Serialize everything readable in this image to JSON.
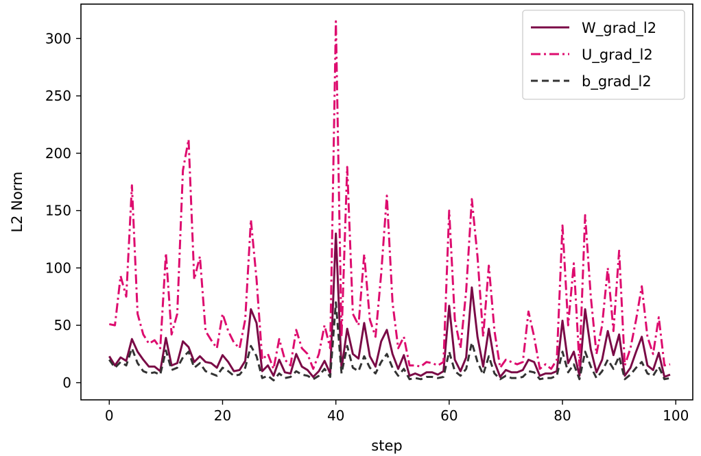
{
  "chart_data": {
    "type": "line",
    "title": "",
    "xlabel": "step",
    "ylabel": "L2 Norm",
    "xlim": [
      -5,
      103
    ],
    "ylim": [
      -15,
      330
    ],
    "xticks": [
      0,
      20,
      40,
      60,
      80,
      100
    ],
    "yticks": [
      0,
      50,
      100,
      150,
      200,
      250,
      300
    ],
    "grid": false,
    "legend": "top-right",
    "series": [
      {
        "name": "W_grad_l2",
        "color": "#7a0a46",
        "dash": "solid",
        "values": [
          23,
          15,
          22,
          19,
          38,
          27,
          20,
          14,
          14,
          10,
          39,
          15,
          17,
          36,
          31,
          18,
          23,
          18,
          17,
          13,
          24,
          18,
          10,
          11,
          19,
          64,
          52,
          10,
          15,
          6,
          20,
          9,
          8,
          25,
          14,
          11,
          5,
          10,
          19,
          8,
          130,
          12,
          47,
          25,
          21,
          52,
          23,
          14,
          36,
          46,
          25,
          12,
          24,
          6,
          8,
          6,
          9,
          9,
          7,
          10,
          67,
          20,
          10,
          22,
          83,
          40,
          14,
          47,
          18,
          5,
          11,
          9,
          9,
          11,
          20,
          18,
          6,
          8,
          8,
          10,
          54,
          17,
          27,
          6,
          64,
          29,
          9,
          20,
          45,
          24,
          42,
          6,
          13,
          27,
          40,
          15,
          11,
          26,
          5,
          7
        ]
      },
      {
        "name": "U_grad_l2",
        "color": "#dd0c6e",
        "dash": "dashdot",
        "values": [
          51,
          50,
          93,
          75,
          172,
          60,
          42,
          34,
          37,
          30,
          113,
          42,
          60,
          185,
          212,
          90,
          110,
          45,
          37,
          30,
          60,
          45,
          35,
          30,
          55,
          142,
          90,
          20,
          25,
          12,
          38,
          20,
          15,
          46,
          30,
          25,
          12,
          25,
          50,
          30,
          315,
          40,
          188,
          60,
          50,
          112,
          55,
          40,
          95,
          163,
          70,
          30,
          40,
          15,
          15,
          14,
          18,
          17,
          15,
          18,
          150,
          55,
          30,
          80,
          160,
          110,
          40,
          102,
          45,
          13,
          20,
          18,
          16,
          18,
          62,
          40,
          12,
          16,
          12,
          20,
          137,
          50,
          104,
          15,
          146,
          75,
          25,
          50,
          100,
          45,
          115,
          15,
          30,
          55,
          84,
          40,
          25,
          57,
          15,
          16
        ]
      },
      {
        "name": "b_grad_l2",
        "color": "#333333",
        "dash": "dashed",
        "values": [
          20,
          13,
          18,
          15,
          30,
          17,
          10,
          8,
          9,
          7,
          28,
          11,
          13,
          22,
          27,
          13,
          17,
          10,
          8,
          6,
          13,
          10,
          6,
          7,
          13,
          32,
          23,
          4,
          6,
          2,
          8,
          4,
          5,
          10,
          7,
          6,
          3,
          6,
          12,
          5,
          70,
          8,
          32,
          13,
          10,
          23,
          13,
          8,
          18,
          25,
          13,
          6,
          12,
          3,
          4,
          3,
          5,
          5,
          4,
          5,
          27,
          10,
          6,
          12,
          35,
          18,
          7,
          23,
          8,
          3,
          6,
          4,
          4,
          5,
          10,
          9,
          3,
          4,
          4,
          6,
          27,
          9,
          16,
          3,
          27,
          14,
          4,
          10,
          20,
          12,
          23,
          3,
          7,
          13,
          18,
          8,
          6,
          14,
          3,
          4
        ]
      }
    ]
  }
}
